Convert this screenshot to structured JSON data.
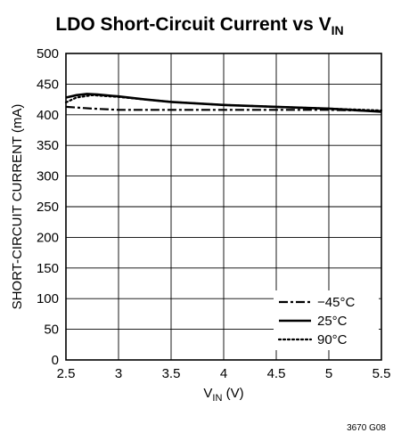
{
  "chart_data": {
    "type": "line",
    "title_main": "LDO Short-Circuit Current vs V",
    "title_sub": "IN",
    "xlabel_main": "V",
    "xlabel_sub": "IN",
    "xlabel_unit": " (V)",
    "ylabel": "SHORT-CIRCUIT CURRENT (mA)",
    "xlim": [
      2.5,
      5.5
    ],
    "ylim": [
      0,
      500
    ],
    "x_ticks": [
      2.5,
      3,
      3.5,
      4,
      4.5,
      5,
      5.5
    ],
    "x_tick_labels": [
      "2.5",
      "3",
      "3.5",
      "4",
      "4.5",
      "5",
      "5.5"
    ],
    "y_ticks": [
      0,
      50,
      100,
      150,
      200,
      250,
      300,
      350,
      400,
      450,
      500
    ],
    "y_tick_labels": [
      "0",
      "50",
      "100",
      "150",
      "200",
      "250",
      "300",
      "350",
      "400",
      "450",
      "500"
    ],
    "grid": true,
    "legend_position": "bottom-right",
    "figure_id": "3670 G08",
    "series": [
      {
        "name": "−45°C",
        "style": "dash-dot",
        "x": [
          2.5,
          2.75,
          3,
          3.5,
          4,
          4.5,
          5,
          5.5
        ],
        "y": [
          413,
          410,
          408,
          408,
          408,
          408,
          408,
          406
        ]
      },
      {
        "name": "25°C",
        "style": "solid",
        "x": [
          2.5,
          2.6,
          2.7,
          2.8,
          3,
          3.25,
          3.5,
          4,
          4.5,
          5,
          5.5
        ],
        "y": [
          428,
          432,
          434,
          433,
          430,
          425,
          421,
          416,
          413,
          410,
          405
        ]
      },
      {
        "name": "90°C",
        "style": "dotted",
        "x": [
          2.5,
          2.6,
          2.75,
          3,
          3.25,
          3.5,
          4,
          4.5,
          5,
          5.5
        ],
        "y": [
          420,
          428,
          432,
          429,
          425,
          421,
          416,
          413,
          410,
          407
        ]
      }
    ]
  }
}
